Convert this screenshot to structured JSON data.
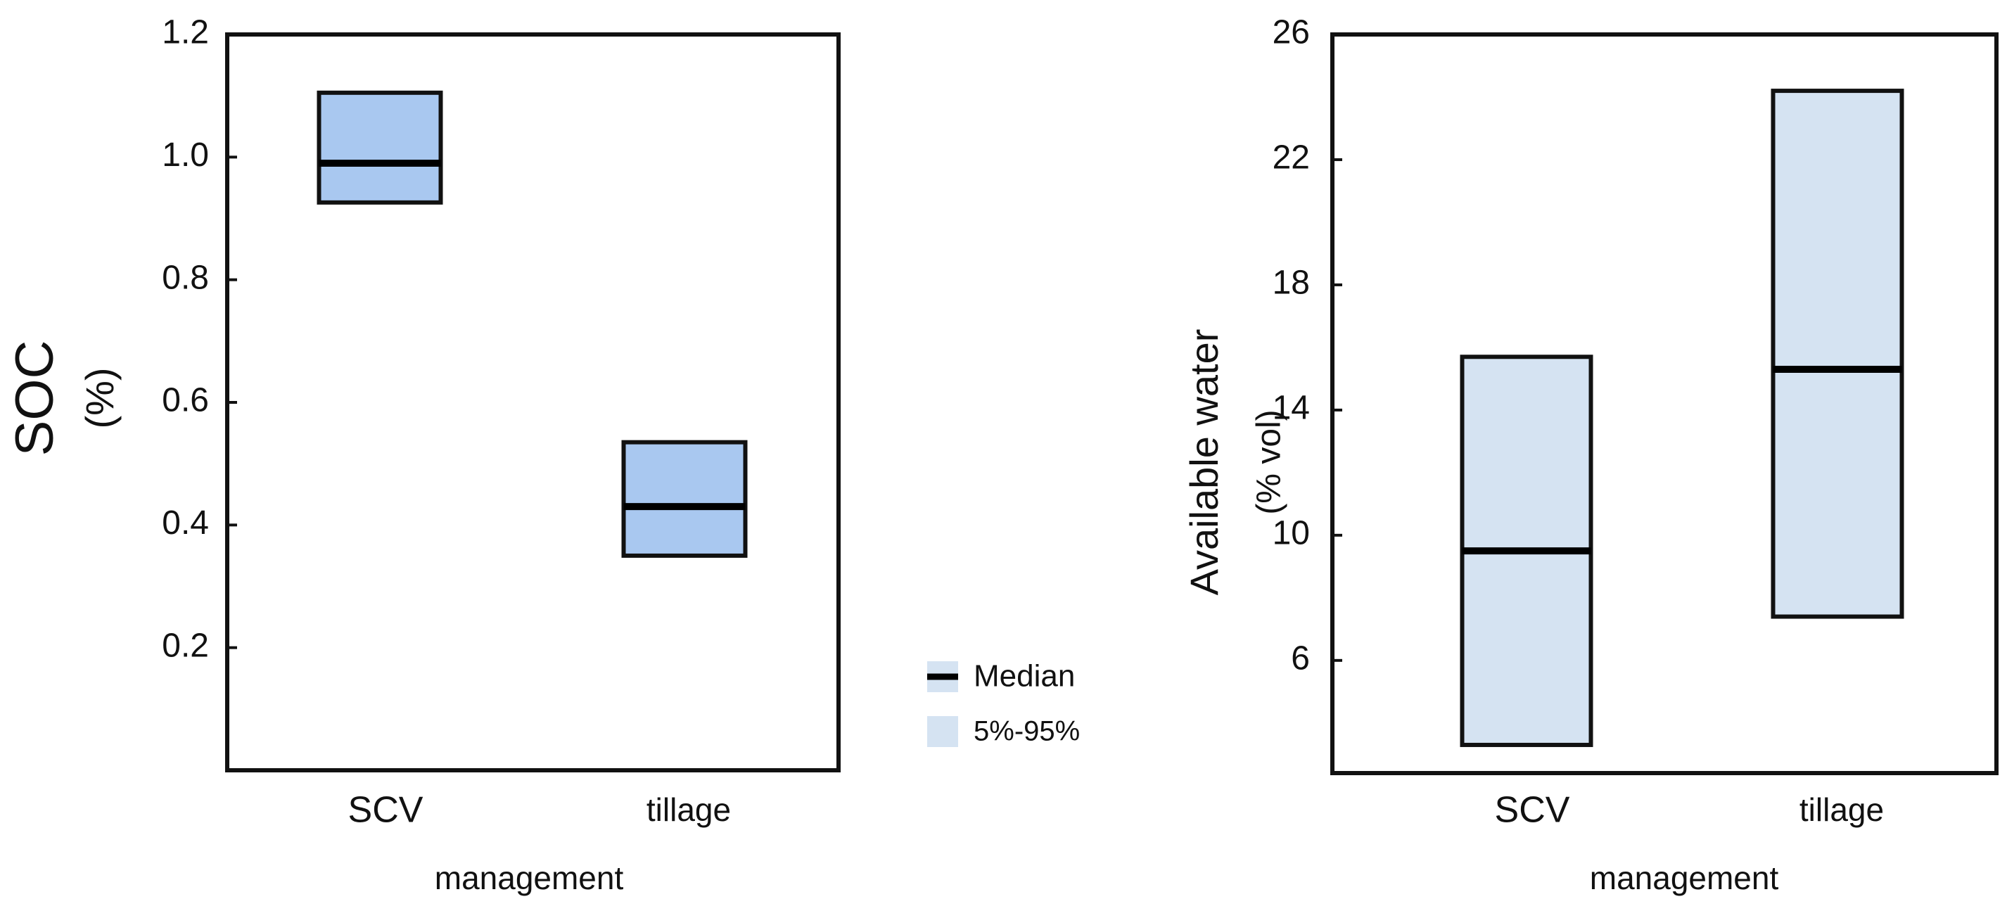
{
  "chart_data": [
    {
      "type": "box",
      "y_label": [
        "SOC",
        "(%)"
      ],
      "x_label": "management",
      "categories": [
        "SCV",
        "tillage"
      ],
      "lower": [
        0.926,
        0.35
      ],
      "median": [
        0.99,
        0.43
      ],
      "upper": [
        1.105,
        0.535
      ],
      "color": "#a9c8f0",
      "ylim": [
        0,
        1.2
      ],
      "yticks": [
        0.2,
        0.4,
        0.6,
        0.8,
        {
          "value": 1,
          "label": "1.0"
        },
        1.2
      ]
    },
    {
      "type": "box",
      "y_label": [
        "Available water",
        "(% vol)"
      ],
      "x_label": "management",
      "categories": [
        "SCV",
        "tillage"
      ],
      "lower": [
        3.3,
        7.4
      ],
      "median": [
        9.5,
        15.3
      ],
      "upper": [
        15.7,
        24.2
      ],
      "color": "#d5e3f2",
      "ylim": [
        2.4,
        26
      ],
      "yticks": [
        6,
        10,
        14,
        18,
        22,
        26
      ]
    }
  ],
  "legend": {
    "median": "Median",
    "range": "5%-95%"
  }
}
